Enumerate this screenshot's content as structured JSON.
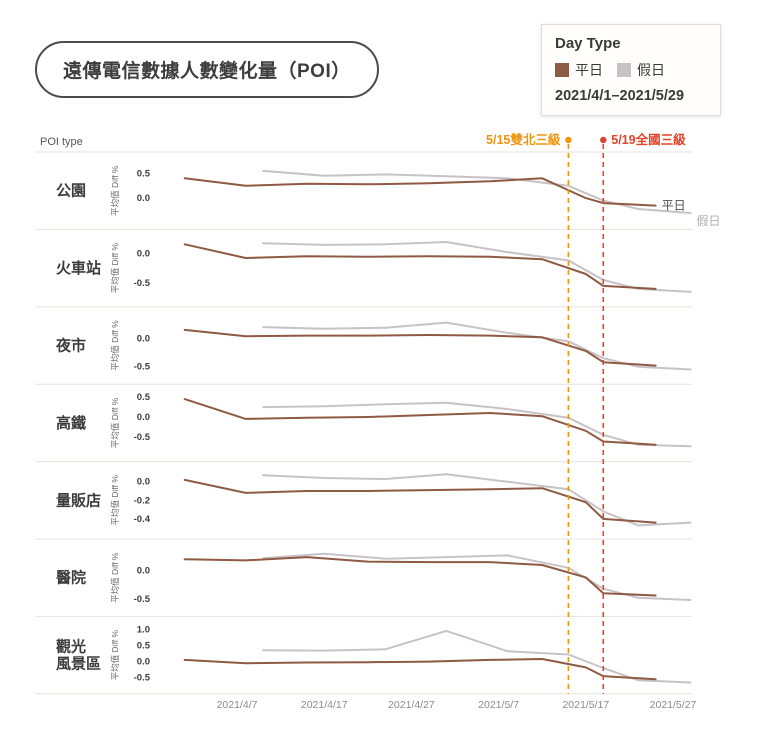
{
  "title": "遠傳電信數據人數變化量（POI）",
  "poi_type_label": "POI type",
  "legend": {
    "title": "Day Type",
    "items": [
      {
        "key": "weekday",
        "label": "平日",
        "color": "#8E5A43"
      },
      {
        "key": "holiday",
        "label": "假日",
        "color": "#C8C2C7"
      }
    ],
    "date_range": "2021/4/1–2021/5/29"
  },
  "chart_data": {
    "type": "line",
    "ylabel": "平均值 Diff %",
    "x_unit": "days since 2021/4/1",
    "x_axis": {
      "ticks": [
        {
          "day": 6,
          "label": "2021/4/7"
        },
        {
          "day": 16,
          "label": "2021/4/17"
        },
        {
          "day": 26,
          "label": "2021/4/27"
        },
        {
          "day": 36,
          "label": "2021/5/7"
        },
        {
          "day": 46,
          "label": "2021/5/17"
        },
        {
          "day": 56,
          "label": "2021/5/27"
        }
      ]
    },
    "annotations": [
      {
        "key": "double-north-level3",
        "day": 44,
        "label": "5/15雙北三級",
        "color": "#EF940B",
        "side": "left"
      },
      {
        "key": "national-level3",
        "day": 48,
        "label": "5/19全國三級",
        "color": "#E2432A",
        "side": "right"
      }
    ],
    "panels": [
      {
        "key": "park",
        "label_lines": [
          "公園"
        ],
        "ylim": [
          -0.45,
          0.75
        ],
        "yticks": [
          0.5,
          0.0
        ],
        "series": [
          {
            "key": "weekday",
            "name": "平日",
            "days": [
              0,
              7,
              14,
              21,
              28,
              35,
              41,
              46,
              48,
              54
            ],
            "values": [
              0.4,
              0.25,
              0.29,
              0.28,
              0.3,
              0.34,
              0.4,
              0.0,
              -0.1,
              -0.15
            ]
          },
          {
            "key": "holiday",
            "name": "假日",
            "days": [
              9,
              16,
              23,
              30,
              37,
              44,
              48,
              52,
              58
            ],
            "values": [
              0.55,
              0.45,
              0.48,
              0.44,
              0.4,
              0.25,
              -0.05,
              -0.22,
              -0.3
            ]
          }
        ]
      },
      {
        "key": "train-station",
        "label_lines": [
          "火車站"
        ],
        "ylim": [
          -0.75,
          0.25
        ],
        "yticks": [
          0.0,
          -0.5
        ],
        "series": [
          {
            "key": "weekday",
            "name": "平日",
            "days": [
              0,
              7,
              14,
              21,
              28,
              35,
              41,
              46,
              48,
              54
            ],
            "values": [
              0.15,
              -0.08,
              -0.05,
              -0.06,
              -0.05,
              -0.06,
              -0.1,
              -0.35,
              -0.55,
              -0.6
            ]
          },
          {
            "key": "holiday",
            "name": "假日",
            "days": [
              9,
              16,
              23,
              30,
              37,
              44,
              48,
              52,
              58
            ],
            "values": [
              0.17,
              0.14,
              0.15,
              0.19,
              0.02,
              -0.12,
              -0.45,
              -0.6,
              -0.65
            ]
          }
        ]
      },
      {
        "key": "night-market",
        "label_lines": [
          "夜市"
        ],
        "ylim": [
          -0.65,
          0.4
        ],
        "yticks": [
          0.0,
          -0.5
        ],
        "series": [
          {
            "key": "weekday",
            "name": "平日",
            "days": [
              0,
              7,
              14,
              21,
              28,
              35,
              41,
              46,
              48,
              54
            ],
            "values": [
              0.15,
              0.04,
              0.05,
              0.05,
              0.06,
              0.05,
              0.02,
              -0.22,
              -0.42,
              -0.48
            ]
          },
          {
            "key": "holiday",
            "name": "假日",
            "days": [
              9,
              16,
              23,
              30,
              37,
              44,
              48,
              52,
              58
            ],
            "values": [
              0.2,
              0.17,
              0.19,
              0.28,
              0.1,
              -0.05,
              -0.35,
              -0.5,
              -0.55
            ]
          }
        ]
      },
      {
        "key": "hsr",
        "label_lines": [
          "高鐵"
        ],
        "ylim": [
          -0.9,
          0.6
        ],
        "yticks": [
          0.5,
          0.0,
          -0.5
        ],
        "series": [
          {
            "key": "weekday",
            "name": "平日",
            "days": [
              0,
              7,
              14,
              21,
              28,
              35,
              41,
              46,
              48,
              54
            ],
            "values": [
              0.45,
              -0.05,
              -0.02,
              0.0,
              0.05,
              0.1,
              0.02,
              -0.35,
              -0.62,
              -0.7
            ]
          },
          {
            "key": "holiday",
            "name": "假日",
            "days": [
              9,
              16,
              23,
              30,
              37,
              44,
              48,
              52,
              58
            ],
            "values": [
              0.25,
              0.27,
              0.32,
              0.36,
              0.2,
              -0.02,
              -0.45,
              -0.7,
              -0.74
            ]
          }
        ]
      },
      {
        "key": "hypermarket",
        "label_lines": [
          "量販店"
        ],
        "ylim": [
          -0.52,
          0.12
        ],
        "yticks": [
          0.0,
          -0.2,
          -0.4
        ],
        "series": [
          {
            "key": "weekday",
            "name": "平日",
            "days": [
              0,
              7,
              14,
              21,
              28,
              35,
              41,
              46,
              48,
              54
            ],
            "values": [
              0.02,
              -0.12,
              -0.1,
              -0.1,
              -0.09,
              -0.08,
              -0.07,
              -0.22,
              -0.4,
              -0.44
            ]
          },
          {
            "key": "holiday",
            "name": "假日",
            "days": [
              9,
              16,
              23,
              30,
              37,
              44,
              48,
              52,
              58
            ],
            "values": [
              0.07,
              0.04,
              0.03,
              0.08,
              0.0,
              -0.08,
              -0.32,
              -0.47,
              -0.44
            ]
          }
        ]
      },
      {
        "key": "hospital",
        "label_lines": [
          "醫院"
        ],
        "ylim": [
          -0.65,
          0.4
        ],
        "yticks": [
          0.0,
          -0.5
        ],
        "series": [
          {
            "key": "weekday",
            "name": "平日",
            "days": [
              0,
              7,
              14,
              21,
              28,
              35,
              41,
              46,
              48,
              54
            ],
            "values": [
              0.2,
              0.18,
              0.24,
              0.16,
              0.15,
              0.15,
              0.1,
              -0.12,
              -0.4,
              -0.44
            ]
          },
          {
            "key": "holiday",
            "name": "假日",
            "days": [
              9,
              16,
              23,
              30,
              37,
              44,
              48,
              52,
              58
            ],
            "values": [
              0.22,
              0.3,
              0.21,
              0.24,
              0.27,
              0.05,
              -0.32,
              -0.48,
              -0.52
            ]
          }
        ]
      },
      {
        "key": "scenic-area",
        "label_lines": [
          "觀光",
          "風景區"
        ],
        "ylim": [
          -0.72,
          1.12
        ],
        "yticks": [
          1.0,
          0.5,
          0.0,
          -0.5
        ],
        "series": [
          {
            "key": "weekday",
            "name": "平日",
            "days": [
              0,
              7,
              14,
              21,
              28,
              35,
              41,
              46,
              48,
              54
            ],
            "values": [
              0.05,
              -0.05,
              -0.03,
              -0.02,
              0.0,
              0.05,
              0.08,
              -0.18,
              -0.45,
              -0.55
            ]
          },
          {
            "key": "holiday",
            "name": "假日",
            "days": [
              9,
              16,
              23,
              30,
              37,
              44,
              48,
              52,
              58
            ],
            "values": [
              0.35,
              0.34,
              0.38,
              0.95,
              0.32,
              0.22,
              -0.2,
              -0.58,
              -0.65
            ]
          }
        ]
      }
    ]
  }
}
